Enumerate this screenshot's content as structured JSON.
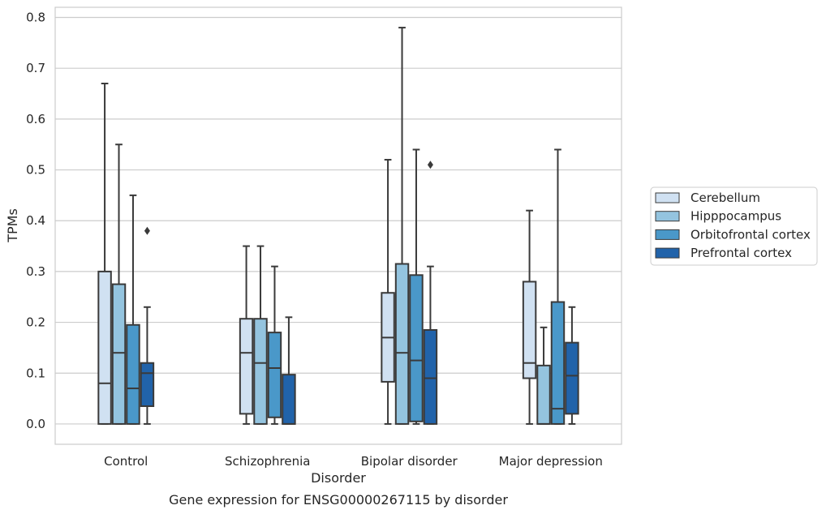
{
  "chart_data": {
    "type": "box",
    "title": "",
    "caption": "Gene expression for ENSG00000267115 by disorder",
    "xlabel": "Disorder",
    "ylabel": "TPMs",
    "ylim": [
      -0.04,
      0.82
    ],
    "yticks": [
      "0.0",
      "0.1",
      "0.2",
      "0.3",
      "0.4",
      "0.5",
      "0.6",
      "0.7",
      "0.8"
    ],
    "grid": "horizontal",
    "legend_position": "right",
    "categories": [
      "Control",
      "Schizophrenia",
      "Bipolar disorder",
      "Major depression"
    ],
    "series": [
      {
        "name": "Cerebellum",
        "color": "#d0e1f2",
        "boxes": [
          {
            "min": 0.0,
            "q1": 0.0,
            "median": 0.08,
            "q3": 0.3,
            "max": 0.67,
            "outliers": []
          },
          {
            "min": 0.0,
            "q1": 0.02,
            "median": 0.14,
            "q3": 0.207,
            "max": 0.35,
            "outliers": []
          },
          {
            "min": 0.0,
            "q1": 0.083,
            "median": 0.17,
            "q3": 0.258,
            "max": 0.52,
            "outliers": []
          },
          {
            "min": 0.0,
            "q1": 0.09,
            "median": 0.12,
            "q3": 0.28,
            "max": 0.42,
            "outliers": []
          }
        ]
      },
      {
        "name": "Hipppocampus",
        "color": "#94c4df",
        "boxes": [
          {
            "min": 0.0,
            "q1": 0.0,
            "median": 0.14,
            "q3": 0.275,
            "max": 0.55,
            "outliers": []
          },
          {
            "min": 0.0,
            "q1": 0.0,
            "median": 0.12,
            "q3": 0.207,
            "max": 0.35,
            "outliers": []
          },
          {
            "min": 0.0,
            "q1": 0.0,
            "median": 0.14,
            "q3": 0.315,
            "max": 0.78,
            "outliers": []
          },
          {
            "min": 0.0,
            "q1": 0.0,
            "median": 0.0,
            "q3": 0.115,
            "max": 0.19,
            "outliers": []
          }
        ]
      },
      {
        "name": "Orbitofrontal cortex",
        "color": "#4a98c9",
        "boxes": [
          {
            "min": 0.0,
            "q1": 0.0,
            "median": 0.07,
            "q3": 0.195,
            "max": 0.45,
            "outliers": []
          },
          {
            "min": 0.0,
            "q1": 0.013,
            "median": 0.11,
            "q3": 0.18,
            "max": 0.31,
            "outliers": []
          },
          {
            "min": 0.0,
            "q1": 0.005,
            "median": 0.125,
            "q3": 0.293,
            "max": 0.54,
            "outliers": []
          },
          {
            "min": 0.0,
            "q1": 0.0,
            "median": 0.03,
            "q3": 0.24,
            "max": 0.54,
            "outliers": []
          }
        ]
      },
      {
        "name": "Prefrontal cortex",
        "color": "#2163aa",
        "boxes": [
          {
            "min": 0.0,
            "q1": 0.035,
            "median": 0.1,
            "q3": 0.12,
            "max": 0.23,
            "outliers": [
              0.38
            ]
          },
          {
            "min": 0.0,
            "q1": 0.0,
            "median": 0.0,
            "q3": 0.097,
            "max": 0.21,
            "outliers": []
          },
          {
            "min": 0.0,
            "q1": 0.0,
            "median": 0.09,
            "q3": 0.185,
            "max": 0.31,
            "outliers": [
              0.51
            ]
          },
          {
            "min": 0.0,
            "q1": 0.02,
            "median": 0.095,
            "q3": 0.16,
            "max": 0.23,
            "outliers": []
          }
        ]
      }
    ]
  }
}
